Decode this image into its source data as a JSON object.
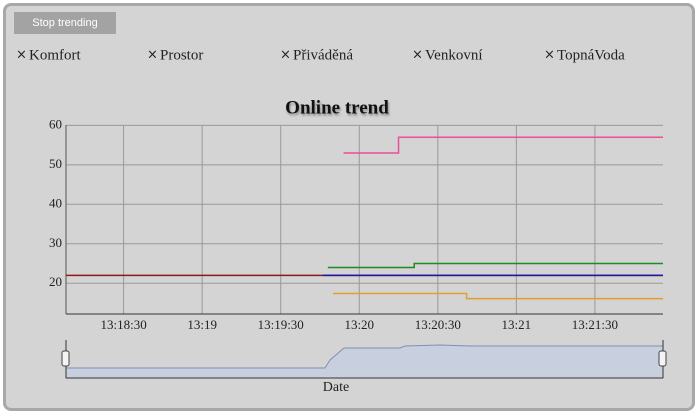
{
  "button": "Stop trending",
  "chart_data": {
    "type": "line",
    "title": "Online trend",
    "x_label": "Date",
    "xlim": [
      "13:18:08",
      "13:21:56"
    ],
    "xticks": [
      "13:18:30",
      "13:19",
      "13:19:30",
      "13:20",
      "13:20:30",
      "13:21",
      "13:21:30"
    ],
    "ylim": [
      12.2,
      60.1
    ],
    "yticks": [
      20,
      30,
      40,
      50,
      60
    ],
    "grid": true,
    "series": [
      {
        "name": "Komfort",
        "color": "#8b1a1a",
        "x": [
          "13:18:08",
          "13:21:56"
        ],
        "values": [
          22,
          22
        ]
      },
      {
        "name": "Prostor",
        "color": "#1a1aa8",
        "x": [
          "13:19:46",
          "13:21:56"
        ],
        "values": [
          22,
          22
        ]
      },
      {
        "name": "Přiváděná",
        "color": "#1f8c1f",
        "x": [
          "13:19:48",
          "13:20:21",
          "13:20:21",
          "13:21:56"
        ],
        "values": [
          24,
          24,
          25,
          25
        ]
      },
      {
        "name": "Venkovní",
        "color": "#e0a030",
        "x": [
          "13:19:50",
          "13:20:41",
          "13:20:41",
          "13:21:56"
        ],
        "values": [
          17.4,
          17.4,
          16.1,
          16.1
        ]
      },
      {
        "name": "TopnáVoda",
        "color": "#e8509a",
        "x": [
          "13:19:54",
          "13:20:15",
          "13:20:15",
          "13:21:56"
        ],
        "values": [
          53,
          53,
          57,
          57
        ]
      }
    ]
  }
}
